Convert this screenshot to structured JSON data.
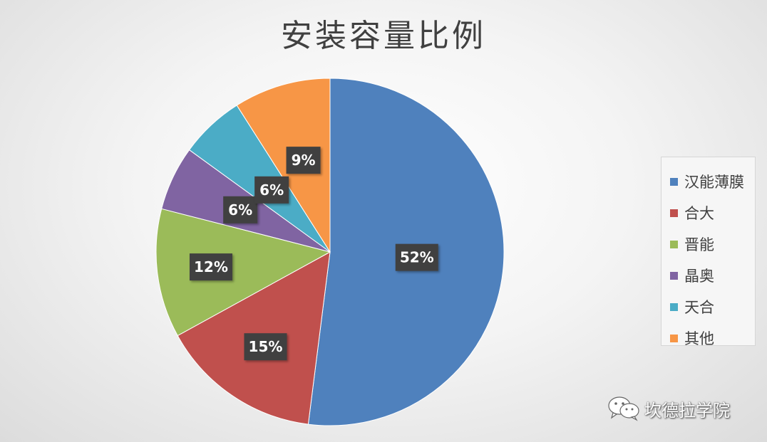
{
  "title": "安装容量比例",
  "chart_data": {
    "type": "pie",
    "title": "安装容量比例",
    "legend_position": "right",
    "series": [
      {
        "name": "汉能薄膜",
        "value": 52,
        "label": "52%",
        "color": "#4f81bd"
      },
      {
        "name": "合大",
        "value": 15,
        "label": "15%",
        "color": "#c0504d"
      },
      {
        "name": "晋能",
        "value": 12,
        "label": "12%",
        "color": "#9bbb59"
      },
      {
        "name": "晶奥",
        "value": 6,
        "label": "6%",
        "color": "#8064a2"
      },
      {
        "name": "天合",
        "value": 6,
        "label": "6%",
        "color": "#4bacc6"
      },
      {
        "name": "其他",
        "value": 9,
        "label": "9%",
        "color": "#f79646"
      }
    ]
  },
  "watermark": {
    "text": "坎德拉学院",
    "icon": "wechat-icon"
  }
}
